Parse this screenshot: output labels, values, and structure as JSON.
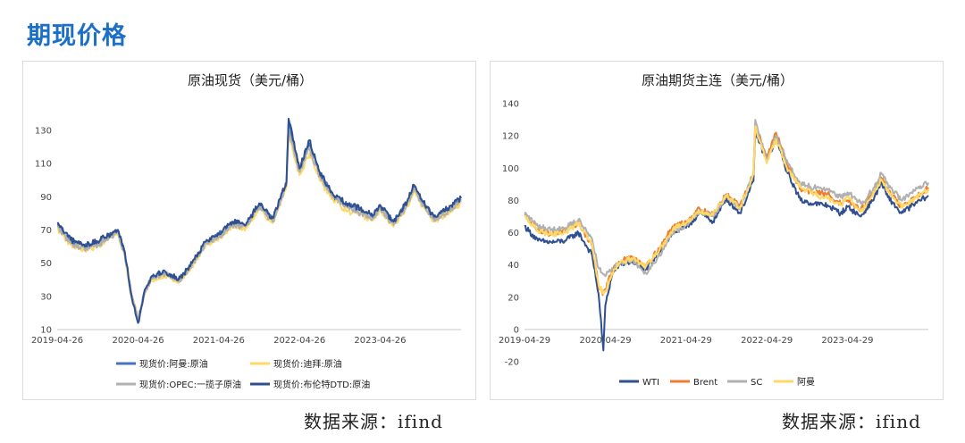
{
  "page": {
    "title": "期现价格",
    "source_left": "数据来源：ifind",
    "source_right": "数据来源：ifind"
  },
  "chart_data": [
    {
      "type": "line",
      "title": "原油现货（美元/桶）",
      "xlabel": "",
      "ylabel": "",
      "x_ticks": [
        "2019-04-26",
        "2020-04-26",
        "2021-04-26",
        "2022-04-26",
        "2023-04-26"
      ],
      "x_range": [
        "2019-04-26",
        "2024-04-26"
      ],
      "y_ticks": [
        10,
        30,
        50,
        70,
        90,
        110,
        130
      ],
      "ylim": [
        10,
        138
      ],
      "grid": false,
      "legend_placement": "bottom",
      "x": [
        "2019-04-26",
        "2019-06-26",
        "2019-08-26",
        "2019-10-26",
        "2019-12-26",
        "2020-01-26",
        "2020-02-26",
        "2020-03-26",
        "2020-04-26",
        "2020-05-26",
        "2020-06-26",
        "2020-08-26",
        "2020-10-26",
        "2020-12-26",
        "2021-02-26",
        "2021-04-26",
        "2021-06-26",
        "2021-08-26",
        "2021-10-26",
        "2021-12-26",
        "2022-02-26",
        "2022-03-08",
        "2022-04-26",
        "2022-06-10",
        "2022-07-26",
        "2022-09-26",
        "2022-11-26",
        "2023-01-26",
        "2023-03-26",
        "2023-04-26",
        "2023-06-26",
        "2023-08-26",
        "2023-09-26",
        "2023-10-26",
        "2023-12-26",
        "2024-02-26",
        "2024-04-26"
      ],
      "series": [
        {
          "name": "现货价:阿曼:原油",
          "color": "#4472c4",
          "values": [
            73,
            63,
            60,
            62,
            67,
            69,
            56,
            32,
            15,
            33,
            42,
            44,
            39,
            49,
            62,
            67,
            74,
            72,
            85,
            76,
            98,
            135,
            106,
            122,
            104,
            90,
            85,
            82,
            78,
            84,
            74,
            86,
            96,
            88,
            77,
            82,
            88
          ]
        },
        {
          "name": "现货价:迪拜:原油",
          "color": "#ffd966",
          "values": [
            71,
            61,
            58,
            60,
            66,
            67,
            54,
            30,
            18,
            31,
            40,
            43,
            38,
            48,
            61,
            65,
            72,
            71,
            83,
            74,
            96,
            128,
            103,
            116,
            100,
            88,
            81,
            79,
            76,
            82,
            72,
            84,
            93,
            86,
            75,
            80,
            86
          ]
        },
        {
          "name": "现货价:OPEC:一揽子原油",
          "color": "#b0b0b0",
          "values": [
            72,
            62,
            59,
            61,
            66,
            68,
            55,
            31,
            16,
            32,
            41,
            44,
            39,
            49,
            62,
            66,
            73,
            72,
            84,
            75,
            97,
            130,
            105,
            119,
            102,
            90,
            84,
            80,
            77,
            83,
            73,
            85,
            95,
            87,
            76,
            81,
            87
          ]
        },
        {
          "name": "现货价:布伦特DTD:原油",
          "color": "#2f4f8f",
          "values": [
            74,
            64,
            61,
            63,
            68,
            70,
            57,
            31,
            14,
            34,
            42,
            45,
            40,
            50,
            63,
            68,
            75,
            73,
            86,
            77,
            99,
            137,
            107,
            124,
            105,
            91,
            86,
            83,
            79,
            85,
            75,
            87,
            97,
            89,
            78,
            83,
            89
          ]
        }
      ]
    },
    {
      "type": "line",
      "title": "原油期货主连（美元/桶）",
      "xlabel": "",
      "ylabel": "",
      "x_ticks": [
        "2019-04-29",
        "2020-04-29",
        "2021-04-29",
        "2022-04-29",
        "2023-04-29"
      ],
      "x_range": [
        "2019-04-29",
        "2024-04-29"
      ],
      "y_ticks": [
        -20,
        0,
        20,
        40,
        60,
        80,
        100,
        120,
        140
      ],
      "ylim": [
        -20,
        140
      ],
      "grid": false,
      "legend_placement": "bottom",
      "x": [
        "2019-04-29",
        "2019-06-29",
        "2019-08-29",
        "2019-10-29",
        "2019-12-29",
        "2020-02-29",
        "2020-03-29",
        "2020-04-20",
        "2020-04-29",
        "2020-05-29",
        "2020-06-29",
        "2020-08-29",
        "2020-10-29",
        "2020-12-29",
        "2021-02-28",
        "2021-04-29",
        "2021-06-29",
        "2021-08-29",
        "2021-10-29",
        "2021-12-29",
        "2022-02-28",
        "2022-03-08",
        "2022-04-29",
        "2022-06-10",
        "2022-07-29",
        "2022-09-29",
        "2022-11-29",
        "2023-01-29",
        "2023-03-29",
        "2023-04-29",
        "2023-06-29",
        "2023-08-29",
        "2023-09-29",
        "2023-10-29",
        "2023-12-29",
        "2024-02-29",
        "2024-04-29"
      ],
      "series": [
        {
          "name": "WTI",
          "color": "#2f4f8f",
          "values": [
            64,
            55,
            54,
            55,
            60,
            46,
            22,
            -13,
            15,
            34,
            40,
            42,
            37,
            48,
            60,
            63,
            72,
            67,
            81,
            72,
            92,
            123,
            104,
            118,
            98,
            80,
            78,
            77,
            72,
            76,
            70,
            82,
            91,
            82,
            72,
            78,
            83
          ]
        },
        {
          "name": "Brent",
          "color": "#ed7d31",
          "values": [
            71,
            62,
            59,
            61,
            66,
            52,
            27,
            22,
            25,
            36,
            42,
            45,
            40,
            50,
            64,
            67,
            75,
            71,
            84,
            76,
            97,
            128,
            107,
            122,
            103,
            87,
            85,
            84,
            78,
            80,
            74,
            86,
            94,
            86,
            76,
            82,
            88
          ]
        },
        {
          "name": "SC",
          "color": "#b0b0b0",
          "values": [
            72,
            64,
            62,
            63,
            68,
            56,
            38,
            34,
            33,
            38,
            41,
            43,
            35,
            46,
            60,
            65,
            73,
            70,
            83,
            75,
            97,
            130,
            104,
            120,
            105,
            90,
            88,
            87,
            82,
            85,
            78,
            88,
            97,
            90,
            80,
            86,
            91
          ]
        },
        {
          "name": "阿曼",
          "color": "#ffd966",
          "values": [
            70,
            61,
            59,
            60,
            66,
            53,
            28,
            22,
            24,
            35,
            41,
            44,
            39,
            49,
            62,
            66,
            73,
            71,
            83,
            75,
            96,
            126,
            103,
            118,
            100,
            88,
            84,
            81,
            77,
            82,
            73,
            85,
            93,
            86,
            76,
            81,
            87
          ]
        }
      ]
    }
  ]
}
